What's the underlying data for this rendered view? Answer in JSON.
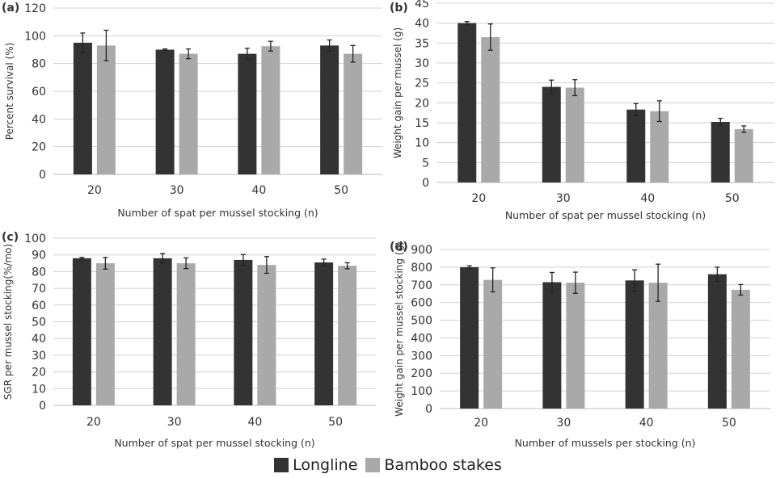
{
  "colors": {
    "longline": "#333333",
    "bamboo": "#a9a9a9",
    "grid": "#d0d0d0"
  },
  "legend": {
    "position": "bottom",
    "items": [
      "Longline",
      "Bamboo stakes"
    ]
  },
  "chart_data": [
    {
      "type": "bar",
      "panel": "(a)",
      "categories": [
        "20",
        "30",
        "40",
        "50"
      ],
      "xlabel": "Number of spat per mussel stocking (n)",
      "ylabel": "Percent survival (%)",
      "ylim": [
        0,
        120
      ],
      "yticks": [
        0,
        20,
        40,
        60,
        80,
        100,
        120
      ],
      "grid": true,
      "series": [
        {
          "name": "Longline",
          "values": [
            95,
            90,
            87,
            93
          ],
          "errors": [
            7,
            0.5,
            4,
            4
          ]
        },
        {
          "name": "Bamboo stakes",
          "values": [
            93,
            87,
            92.5,
            87
          ],
          "errors": [
            11,
            3.5,
            3.5,
            6
          ]
        }
      ]
    },
    {
      "type": "bar",
      "panel": "(b)",
      "categories": [
        "20",
        "30",
        "40",
        "50"
      ],
      "xlabel": "Number of spat per mussel stocking (n)",
      "ylabel": "Weight gain per mussel (g)",
      "ylim": [
        0,
        45
      ],
      "yticks": [
        0,
        5,
        10,
        15,
        20,
        25,
        30,
        35,
        40,
        45
      ],
      "grid": true,
      "series": [
        {
          "name": "Longline",
          "values": [
            40,
            24,
            18.3,
            15.2
          ],
          "errors": [
            0.4,
            1.7,
            1.5,
            0.9
          ]
        },
        {
          "name": "Bamboo stakes",
          "values": [
            36.5,
            23.8,
            17.9,
            13.4
          ],
          "errors": [
            3.3,
            2,
            2.6,
            0.8
          ]
        }
      ]
    },
    {
      "type": "bar",
      "panel": "(c)",
      "categories": [
        "20",
        "30",
        "40",
        "50"
      ],
      "xlabel": "Number of spat per mussel stocking (n)",
      "ylabel": "SGR per mussel stocking(%/mo)",
      "ylim": [
        0,
        100
      ],
      "yticks": [
        0,
        10,
        20,
        30,
        40,
        50,
        60,
        70,
        80,
        90,
        100
      ],
      "grid": true,
      "series": [
        {
          "name": "Longline",
          "values": [
            88,
            88,
            87,
            85.5
          ],
          "errors": [
            0.5,
            2.8,
            3.2,
            2
          ]
        },
        {
          "name": "Bamboo stakes",
          "values": [
            85,
            85,
            84,
            83.5
          ],
          "errors": [
            3.5,
            3.2,
            5,
            1.8
          ]
        }
      ]
    },
    {
      "type": "bar",
      "panel": "(d)",
      "categories": [
        "20",
        "30",
        "40",
        "50"
      ],
      "xlabel": "Number of mussels per stocking (n)",
      "ylabel": "Weight gain per mussel stocking (g)",
      "ylim": [
        0,
        900
      ],
      "yticks": [
        0,
        100,
        200,
        300,
        400,
        500,
        600,
        700,
        800,
        900
      ],
      "grid": true,
      "series": [
        {
          "name": "Longline",
          "values": [
            800,
            715,
            725,
            760
          ],
          "errors": [
            8,
            55,
            60,
            40
          ]
        },
        {
          "name": "Bamboo stakes",
          "values": [
            728,
            712,
            712,
            672
          ],
          "errors": [
            68,
            60,
            105,
            30
          ]
        }
      ]
    }
  ]
}
